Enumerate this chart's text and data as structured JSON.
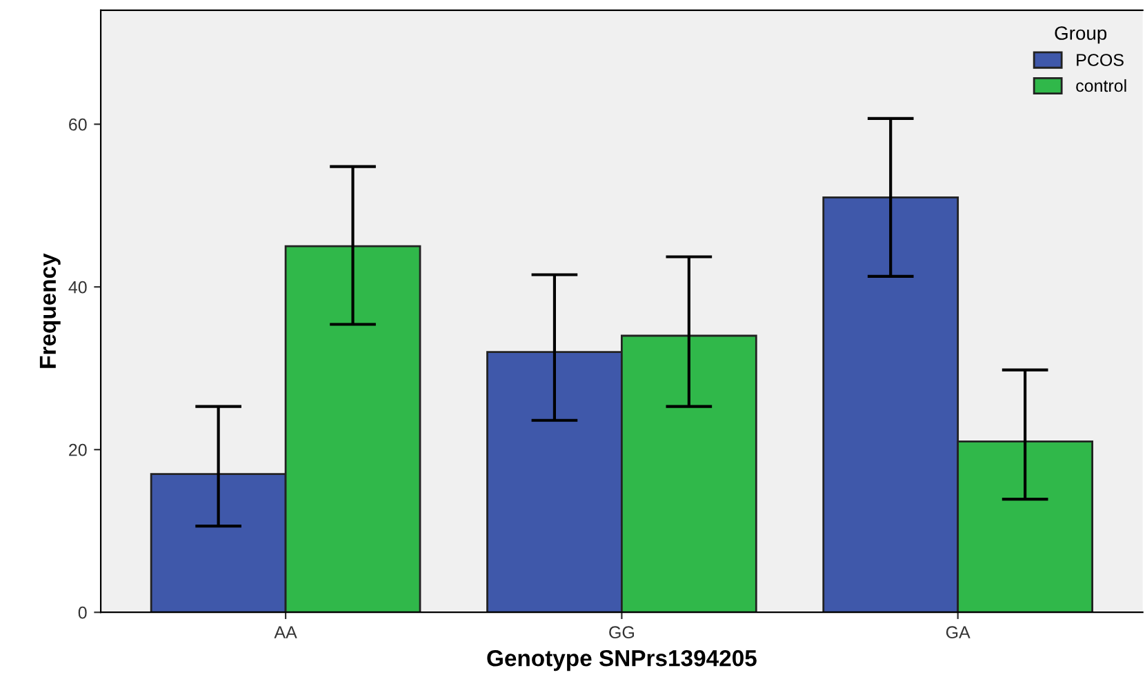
{
  "chart_data": {
    "type": "bar",
    "xlabel": "Genotype SNPrs1394205",
    "ylabel": "Frequency",
    "legend_title": "Group",
    "categories": [
      "AA",
      "GG",
      "GA"
    ],
    "series": [
      {
        "name": "PCOS",
        "color": "#3f58aa",
        "values": [
          17,
          32,
          51
        ],
        "errors": [
          [
            10.6,
            25.3
          ],
          [
            23.6,
            41.5
          ],
          [
            41.3,
            60.7
          ]
        ]
      },
      {
        "name": "control",
        "color": "#30b84a",
        "values": [
          45,
          34,
          21
        ],
        "errors": [
          [
            35.4,
            54.8
          ],
          [
            25.3,
            43.7
          ],
          [
            13.9,
            29.8
          ]
        ]
      }
    ],
    "ylim": [
      0,
      74
    ],
    "yticks": [
      0,
      20,
      40,
      60
    ],
    "grid": false,
    "legend": "top right"
  }
}
